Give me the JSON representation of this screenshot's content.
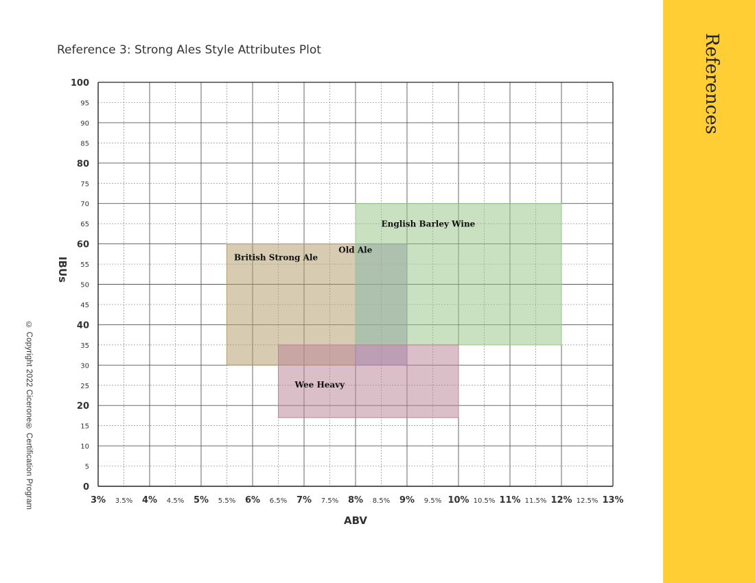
{
  "page": {
    "title": "Reference 3: Strong Ales Style Attributes Plot",
    "side_tab": "References",
    "copyright": "© Copyright 2022 Cicerone® Certification Program",
    "accent_color": "#ffce34"
  },
  "chart_data": {
    "type": "range-box",
    "title": "Reference 3: Strong Ales Style Attributes Plot",
    "xlabel": "ABV",
    "ylabel": "IBUs",
    "xlim": [
      3,
      13
    ],
    "ylim": [
      0,
      100
    ],
    "grid": true,
    "x_major_ticks": [
      "3%",
      "4%",
      "5%",
      "6%",
      "7%",
      "8%",
      "9%",
      "10%",
      "11%",
      "12%",
      "13%"
    ],
    "x_minor_ticks": [
      "3.5%",
      "4.5%",
      "5.5%",
      "6.5%",
      "7.5%",
      "8.5%",
      "9.5%",
      "10.5%",
      "11.5%",
      "12.5%"
    ],
    "y_major_ticks": [
      "0",
      "20",
      "40",
      "60",
      "80",
      "100"
    ],
    "y_minor_ticks": [
      "5",
      "10",
      "15",
      "25",
      "30",
      "35",
      "45",
      "50",
      "55",
      "65",
      "70",
      "75",
      "85",
      "90",
      "95"
    ],
    "series": [
      {
        "name": "British Strong Ale",
        "abv": [
          5.5,
          8
        ],
        "ibu": [
          30,
          60
        ],
        "color": "#b39b6a"
      },
      {
        "name": "Old Ale",
        "abv": [
          8,
          9
        ],
        "ibu": [
          30,
          60
        ],
        "color": "#8c80b4"
      },
      {
        "name": "English Barley Wine",
        "abv": [
          8,
          12
        ],
        "ibu": [
          35,
          70
        ],
        "color": "#9ac688"
      },
      {
        "name": "Wee Heavy",
        "abv": [
          6.5,
          10
        ],
        "ibu": [
          17,
          35
        ],
        "color": "#b88495"
      }
    ]
  }
}
